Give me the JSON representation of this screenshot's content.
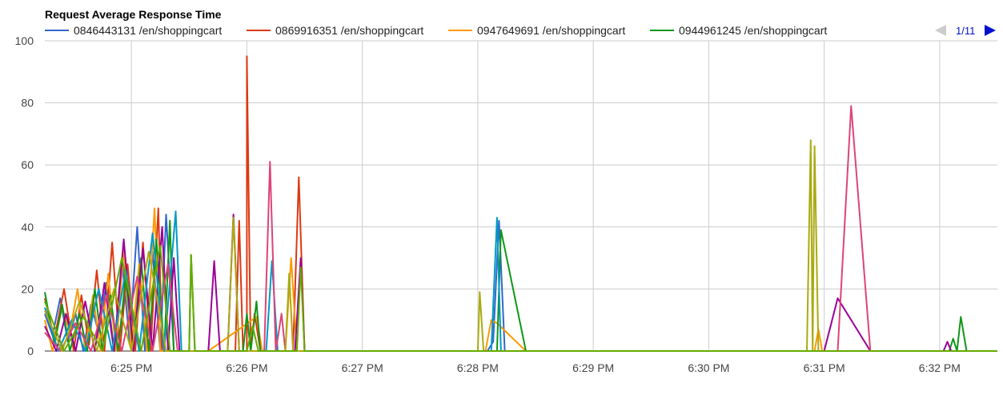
{
  "chart_data": {
    "type": "line",
    "title": "Request Average Response Time",
    "xlabel": "",
    "ylabel": "",
    "ylim": [
      0,
      100
    ],
    "y_ticks": [
      0,
      20,
      40,
      60,
      80,
      100
    ],
    "x_range": [
      "6:24:15 PM",
      "6:32:30 PM"
    ],
    "x_ticks": [
      {
        "t": "6:25:00 PM",
        "label": "6:25 PM"
      },
      {
        "t": "6:26:00 PM",
        "label": "6:26 PM"
      },
      {
        "t": "6:27:00 PM",
        "label": "6:27 PM"
      },
      {
        "t": "6:28:00 PM",
        "label": "6:28 PM"
      },
      {
        "t": "6:29:00 PM",
        "label": "6:29 PM"
      },
      {
        "t": "6:30:00 PM",
        "label": "6:30 PM"
      },
      {
        "t": "6:31:00 PM",
        "label": "6:31 PM"
      },
      {
        "t": "6:32:00 PM",
        "label": "6:32 PM"
      }
    ],
    "grid": true,
    "legend_position": "top",
    "pager": {
      "label": "1/11",
      "prev_enabled": false,
      "next_enabled": true
    },
    "series": [
      {
        "name": "0846443131 /en/shoppingcart",
        "color": "#3366cc",
        "points": [
          [
            "6:24:15 PM",
            12
          ],
          [
            "6:24:19 PM",
            5
          ],
          [
            "6:24:23 PM",
            17
          ],
          [
            "6:24:27 PM",
            3
          ],
          [
            "6:24:31 PM",
            12
          ],
          [
            "6:24:35 PM",
            0
          ],
          [
            "6:24:39 PM",
            15
          ],
          [
            "6:24:43 PM",
            6
          ],
          [
            "6:24:47 PM",
            22
          ],
          [
            "6:24:51 PM",
            0
          ],
          [
            "6:24:55 PM",
            30
          ],
          [
            "6:24:59 PM",
            3
          ],
          [
            "6:25:03 PM",
            40
          ],
          [
            "6:25:07 PM",
            0
          ],
          [
            "6:25:11 PM",
            32
          ],
          [
            "6:25:15 PM",
            0
          ],
          [
            "6:25:18 PM",
            44
          ],
          [
            "6:25:22 PM",
            0
          ],
          [
            "6:25:27 PM",
            0
          ],
          [
            "6:27:40 PM",
            0
          ],
          [
            "6:28:05 PM",
            0
          ],
          [
            "6:28:08 PM",
            3
          ],
          [
            "6:28:11 PM",
            42
          ],
          [
            "6:28:14 PM",
            0
          ],
          [
            "6:32:00 PM",
            0
          ],
          [
            "6:32:03 PM",
            0
          ],
          [
            "6:32:30 PM",
            0
          ]
        ]
      },
      {
        "name": "0869916351 /en/shoppingcart",
        "color": "#dc3912",
        "points": [
          [
            "6:24:15 PM",
            17
          ],
          [
            "6:24:20 PM",
            4
          ],
          [
            "6:24:25 PM",
            20
          ],
          [
            "6:24:30 PM",
            0
          ],
          [
            "6:24:34 PM",
            18
          ],
          [
            "6:24:38 PM",
            2
          ],
          [
            "6:24:42 PM",
            26
          ],
          [
            "6:24:46 PM",
            0
          ],
          [
            "6:24:50 PM",
            35
          ],
          [
            "6:24:54 PM",
            0
          ],
          [
            "6:24:58 PM",
            28
          ],
          [
            "6:25:02 PM",
            0
          ],
          [
            "6:25:06 PM",
            35
          ],
          [
            "6:25:10 PM",
            0
          ],
          [
            "6:25:14 PM",
            46
          ],
          [
            "6:25:16 PM",
            0
          ],
          [
            "6:25:30 PM",
            0
          ],
          [
            "6:25:54 PM",
            0
          ],
          [
            "6:25:56 PM",
            42
          ],
          [
            "6:25:58 PM",
            0
          ],
          [
            "6:26:00 PM",
            0
          ],
          [
            "6:26:00 PM",
            95
          ],
          [
            "6:26:02 PM",
            0
          ],
          [
            "6:26:04 PM",
            12
          ],
          [
            "6:26:07 PM",
            0
          ],
          [
            "6:26:24 PM",
            0
          ],
          [
            "6:26:27 PM",
            56
          ],
          [
            "6:26:30 PM",
            0
          ],
          [
            "6:32:30 PM",
            0
          ]
        ]
      },
      {
        "name": "0947649691 /en/shoppingcart",
        "color": "#ff9900",
        "points": [
          [
            "6:24:15 PM",
            10
          ],
          [
            "6:24:19 PM",
            0
          ],
          [
            "6:24:24 PM",
            14
          ],
          [
            "6:24:28 PM",
            6
          ],
          [
            "6:24:32 PM",
            20
          ],
          [
            "6:24:36 PM",
            0
          ],
          [
            "6:24:40 PM",
            18
          ],
          [
            "6:24:44 PM",
            0
          ],
          [
            "6:24:48 PM",
            25
          ],
          [
            "6:24:52 PM",
            0
          ],
          [
            "6:24:56 PM",
            33
          ],
          [
            "6:25:00 PM",
            0
          ],
          [
            "6:25:04 PM",
            28
          ],
          [
            "6:25:08 PM",
            0
          ],
          [
            "6:25:12 PM",
            46
          ],
          [
            "6:25:15 PM",
            0
          ],
          [
            "6:25:40 PM",
            0
          ],
          [
            "6:26:05 PM",
            11
          ],
          [
            "6:26:08 PM",
            0
          ],
          [
            "6:26:20 PM",
            0
          ],
          [
            "6:26:23 PM",
            30
          ],
          [
            "6:26:26 PM",
            0
          ],
          [
            "6:28:04 PM",
            0
          ],
          [
            "6:28:07 PM",
            10
          ],
          [
            "6:28:10 PM",
            9
          ],
          [
            "6:28:25 PM",
            0
          ],
          [
            "6:30:55 PM",
            0
          ],
          [
            "6:30:57 PM",
            7
          ],
          [
            "6:30:59 PM",
            0
          ],
          [
            "6:32:30 PM",
            0
          ]
        ]
      },
      {
        "name": "0944961245 /en/shoppingcart",
        "color": "#109618",
        "points": [
          [
            "6:24:15 PM",
            19
          ],
          [
            "6:24:20 PM",
            2
          ],
          [
            "6:24:24 PM",
            15
          ],
          [
            "6:24:28 PM",
            0
          ],
          [
            "6:24:33 PM",
            12
          ],
          [
            "6:24:37 PM",
            0
          ],
          [
            "6:24:41 PM",
            20
          ],
          [
            "6:24:45 PM",
            0
          ],
          [
            "6:24:49 PM",
            18
          ],
          [
            "6:24:53 PM",
            0
          ],
          [
            "6:24:57 PM",
            24
          ],
          [
            "6:25:01 PM",
            0
          ],
          [
            "6:25:05 PM",
            30
          ],
          [
            "6:25:09 PM",
            0
          ],
          [
            "6:25:13 PM",
            36
          ],
          [
            "6:25:17 PM",
            0
          ],
          [
            "6:25:20 PM",
            42
          ],
          [
            "6:25:22 PM",
            0
          ],
          [
            "6:25:30 PM",
            0
          ],
          [
            "6:25:31 PM",
            31
          ],
          [
            "6:25:33 PM",
            0
          ],
          [
            "6:25:55 PM",
            0
          ],
          [
            "6:25:58 PM",
            0
          ],
          [
            "6:26:00 PM",
            12
          ],
          [
            "6:26:02 PM",
            0
          ],
          [
            "6:26:05 PM",
            16
          ],
          [
            "6:26:07 PM",
            0
          ],
          [
            "6:26:25 PM",
            0
          ],
          [
            "6:28:06 PM",
            0
          ],
          [
            "6:28:10 PM",
            0
          ],
          [
            "6:28:12 PM",
            39
          ],
          [
            "6:28:25 PM",
            0
          ],
          [
            "6:32:05 PM",
            0
          ],
          [
            "6:32:07 PM",
            4
          ],
          [
            "6:32:09 PM",
            0
          ],
          [
            "6:32:11 PM",
            11
          ],
          [
            "6:32:14 PM",
            0
          ],
          [
            "6:32:30 PM",
            0
          ]
        ]
      },
      {
        "name": "",
        "color": "#990099",
        "points": [
          [
            "6:24:15 PM",
            8
          ],
          [
            "6:24:21 PM",
            0
          ],
          [
            "6:24:26 PM",
            12
          ],
          [
            "6:24:31 PM",
            0
          ],
          [
            "6:24:36 PM",
            16
          ],
          [
            "6:24:41 PM",
            0
          ],
          [
            "6:24:46 PM",
            22
          ],
          [
            "6:24:51 PM",
            0
          ],
          [
            "6:24:56 PM",
            36
          ],
          [
            "6:25:01 PM",
            0
          ],
          [
            "6:25:06 PM",
            33
          ],
          [
            "6:25:11 PM",
            0
          ],
          [
            "6:25:16 PM",
            40
          ],
          [
            "6:25:19 PM",
            0
          ],
          [
            "6:25:22 PM",
            30
          ],
          [
            "6:25:25 PM",
            0
          ],
          [
            "6:25:40 PM",
            0
          ],
          [
            "6:25:43 PM",
            29
          ],
          [
            "6:25:46 PM",
            0
          ],
          [
            "6:25:50 PM",
            0
          ],
          [
            "6:25:53 PM",
            44
          ],
          [
            "6:25:56 PM",
            0
          ],
          [
            "6:26:25 PM",
            0
          ],
          [
            "6:26:28 PM",
            30
          ],
          [
            "6:26:30 PM",
            0
          ],
          [
            "6:31:00 PM",
            0
          ],
          [
            "6:31:07 PM",
            17
          ],
          [
            "6:31:24 PM",
            0
          ],
          [
            "6:32:02 PM",
            0
          ],
          [
            "6:32:04 PM",
            3
          ],
          [
            "6:32:06 PM",
            0
          ],
          [
            "6:32:30 PM",
            0
          ]
        ]
      },
      {
        "name": "",
        "color": "#0099c6",
        "points": [
          [
            "6:24:15 PM",
            14
          ],
          [
            "6:24:22 PM",
            0
          ],
          [
            "6:24:29 PM",
            10
          ],
          [
            "6:24:36 PM",
            0
          ],
          [
            "6:24:43 PM",
            20
          ],
          [
            "6:24:50 PM",
            0
          ],
          [
            "6:24:57 PM",
            26
          ],
          [
            "6:25:04 PM",
            0
          ],
          [
            "6:25:11 PM",
            38
          ],
          [
            "6:25:17 PM",
            0
          ],
          [
            "6:25:23 PM",
            45
          ],
          [
            "6:25:26 PM",
            0
          ],
          [
            "6:26:10 PM",
            0
          ],
          [
            "6:26:13 PM",
            29
          ],
          [
            "6:26:16 PM",
            0
          ],
          [
            "6:28:07 PM",
            0
          ],
          [
            "6:28:10 PM",
            43
          ],
          [
            "6:28:12 PM",
            0
          ],
          [
            "6:32:30 PM",
            0
          ]
        ]
      },
      {
        "name": "",
        "color": "#dd4477",
        "points": [
          [
            "6:24:15 PM",
            6
          ],
          [
            "6:24:23 PM",
            0
          ],
          [
            "6:24:31 PM",
            9
          ],
          [
            "6:24:39 PM",
            0
          ],
          [
            "6:24:47 PM",
            18
          ],
          [
            "6:24:55 PM",
            0
          ],
          [
            "6:25:03 PM",
            24
          ],
          [
            "6:25:11 PM",
            0
          ],
          [
            "6:25:19 PM",
            28
          ],
          [
            "6:25:24 PM",
            0
          ],
          [
            "6:26:09 PM",
            0
          ],
          [
            "6:26:12 PM",
            61
          ],
          [
            "6:26:15 PM",
            0
          ],
          [
            "6:26:18 PM",
            12
          ],
          [
            "6:26:20 PM",
            0
          ],
          [
            "6:31:05 PM",
            0
          ],
          [
            "6:31:07 PM",
            0
          ],
          [
            "6:31:14 PM",
            79
          ],
          [
            "6:31:24 PM",
            0
          ],
          [
            "6:32:30 PM",
            0
          ]
        ]
      },
      {
        "name": "",
        "color": "#aaaa11",
        "points": [
          [
            "6:24:15 PM",
            13
          ],
          [
            "6:24:24 PM",
            0
          ],
          [
            "6:24:33 PM",
            16
          ],
          [
            "6:24:42 PM",
            0
          ],
          [
            "6:24:51 PM",
            20
          ],
          [
            "6:25:00 PM",
            0
          ],
          [
            "6:25:09 PM",
            32
          ],
          [
            "6:25:18 PM",
            0
          ],
          [
            "6:25:27 PM",
            0
          ],
          [
            "6:25:50 PM",
            0
          ],
          [
            "6:25:53 PM",
            43
          ],
          [
            "6:25:56 PM",
            0
          ],
          [
            "6:26:20 PM",
            0
          ],
          [
            "6:26:22 PM",
            25
          ],
          [
            "6:26:24 PM",
            0
          ],
          [
            "6:28:00 PM",
            0
          ],
          [
            "6:28:01 PM",
            19
          ],
          [
            "6:28:03 PM",
            0
          ],
          [
            "6:30:51 PM",
            0
          ],
          [
            "6:30:53 PM",
            68
          ],
          [
            "6:30:54 PM",
            0
          ],
          [
            "6:30:55 PM",
            66
          ],
          [
            "6:30:57 PM",
            0
          ],
          [
            "6:32:30 PM",
            0
          ]
        ]
      },
      {
        "name": "",
        "color": "#66aa00",
        "points": [
          [
            "6:24:15 PM",
            16
          ],
          [
            "6:24:25 PM",
            0
          ],
          [
            "6:24:35 PM",
            11
          ],
          [
            "6:24:45 PM",
            0
          ],
          [
            "6:24:55 PM",
            30
          ],
          [
            "6:25:05 PM",
            0
          ],
          [
            "6:25:15 PM",
            34
          ],
          [
            "6:25:20 PM",
            0
          ],
          [
            "6:25:30 PM",
            0
          ],
          [
            "6:25:31 PM",
            31
          ],
          [
            "6:25:33 PM",
            0
          ],
          [
            "6:26:00 PM",
            0
          ],
          [
            "6:26:03 PM",
            8
          ],
          [
            "6:26:06 PM",
            0
          ],
          [
            "6:26:26 PM",
            0
          ],
          [
            "6:26:28 PM",
            27
          ],
          [
            "6:26:30 PM",
            0
          ],
          [
            "6:32:30 PM",
            0
          ]
        ]
      }
    ]
  }
}
